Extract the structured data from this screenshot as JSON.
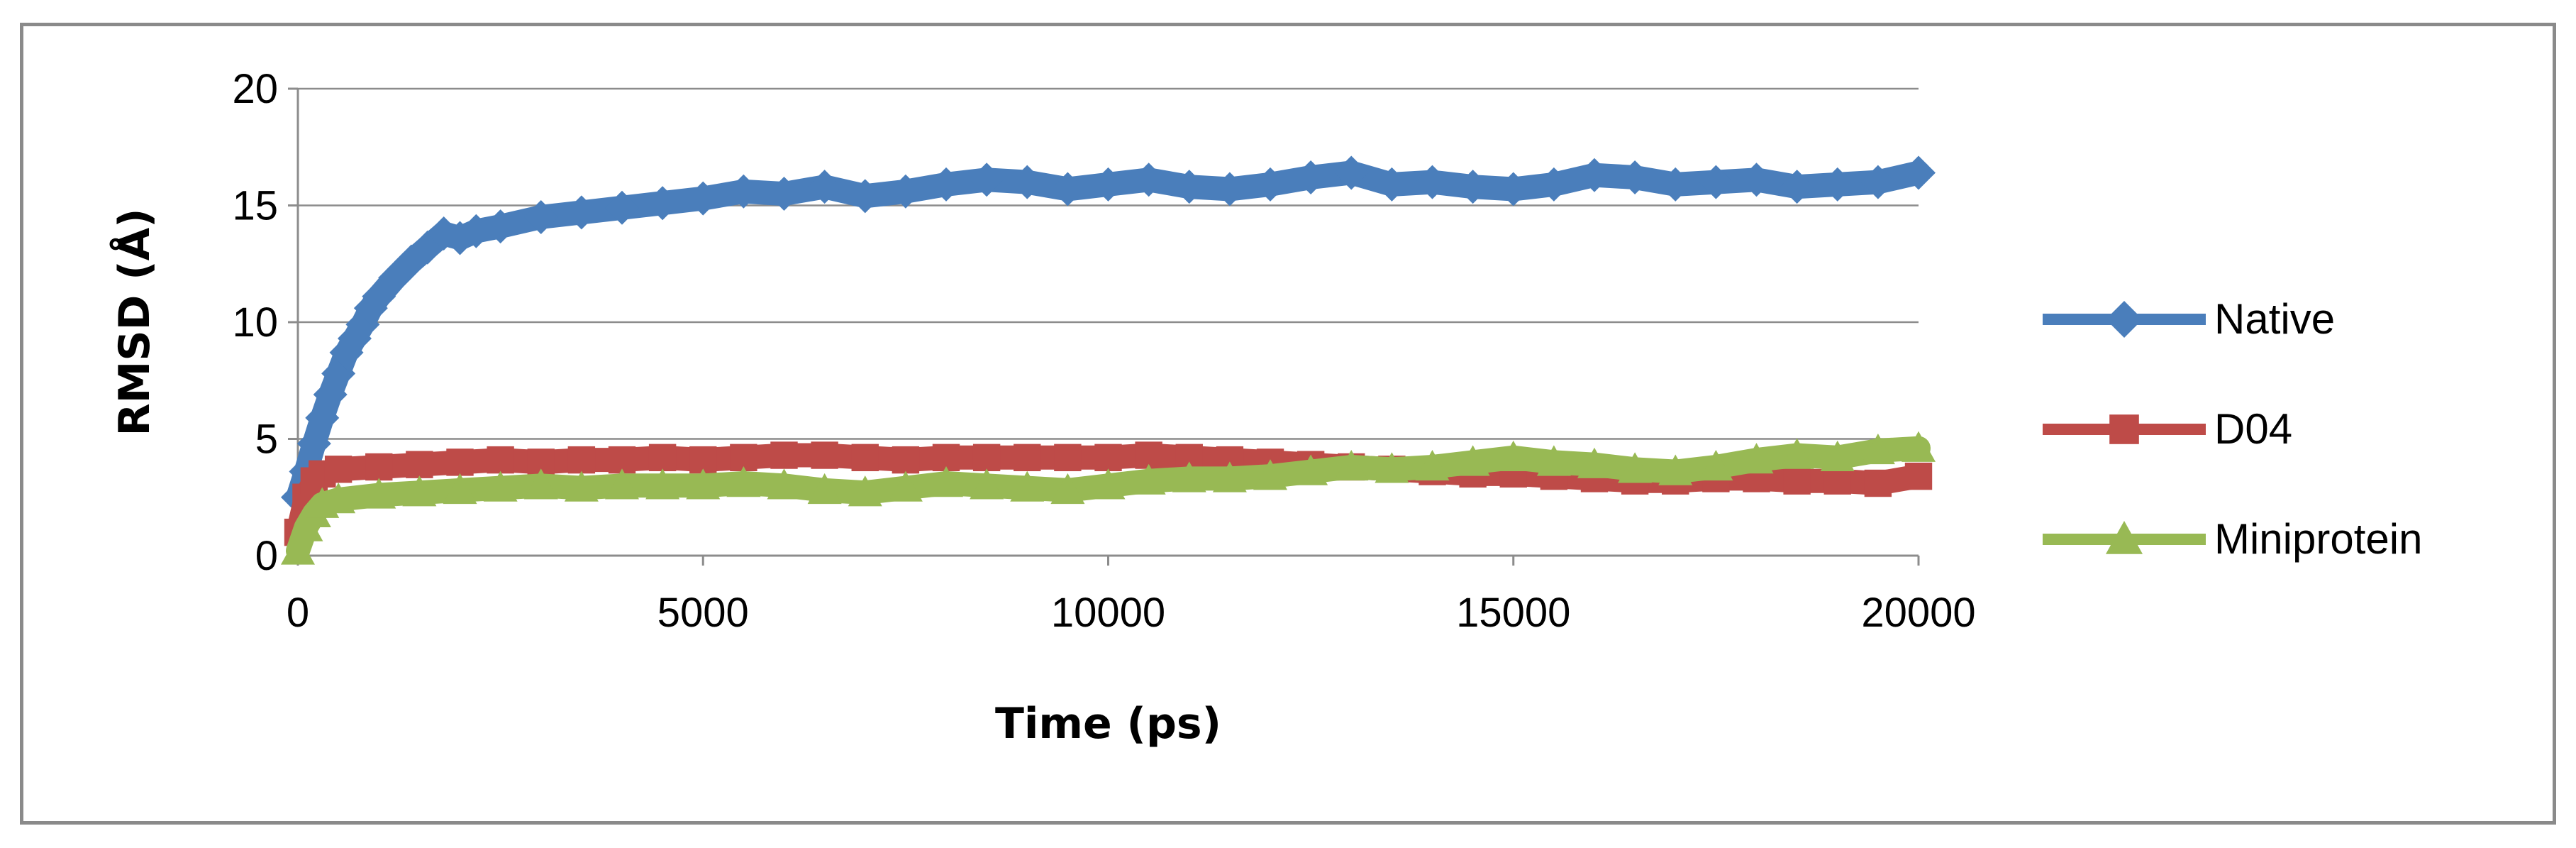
{
  "chart_data": {
    "type": "line",
    "xlabel": "Time (ps)",
    "ylabel": "RMSD (Å)",
    "xlim": [
      0,
      20000
    ],
    "ylim": [
      0,
      20
    ],
    "xticks": [
      "0",
      "5000",
      "10000",
      "15000",
      "20000"
    ],
    "yticks": [
      "0",
      "5",
      "10",
      "15",
      "20"
    ],
    "grid": "horizontal",
    "legend_position": "right",
    "series": [
      {
        "name": "Native",
        "color": "#4a7ebb",
        "marker": "diamond",
        "points": [
          [
            0,
            2.5
          ],
          [
            100,
            3.6
          ],
          [
            200,
            4.8
          ],
          [
            300,
            5.9
          ],
          [
            400,
            6.9
          ],
          [
            500,
            7.8
          ],
          [
            600,
            8.7
          ],
          [
            700,
            9.3
          ],
          [
            800,
            9.9
          ],
          [
            900,
            10.6
          ],
          [
            1000,
            11.1
          ],
          [
            1200,
            11.9
          ],
          [
            1400,
            12.6
          ],
          [
            1600,
            13.2
          ],
          [
            1800,
            13.8
          ],
          [
            2000,
            13.6
          ],
          [
            2200,
            13.9
          ],
          [
            2500,
            14.1
          ],
          [
            3000,
            14.5
          ],
          [
            3500,
            14.7
          ],
          [
            4000,
            14.9
          ],
          [
            4500,
            15.1
          ],
          [
            5000,
            15.3
          ],
          [
            5500,
            15.6
          ],
          [
            6000,
            15.5
          ],
          [
            6500,
            15.8
          ],
          [
            7000,
            15.4
          ],
          [
            7500,
            15.6
          ],
          [
            8000,
            15.9
          ],
          [
            8500,
            16.1
          ],
          [
            9000,
            16.0
          ],
          [
            9500,
            15.7
          ],
          [
            10000,
            15.9
          ],
          [
            10500,
            16.1
          ],
          [
            11000,
            15.8
          ],
          [
            11500,
            15.7
          ],
          [
            12000,
            15.9
          ],
          [
            12500,
            16.2
          ],
          [
            13000,
            16.4
          ],
          [
            13500,
            15.9
          ],
          [
            14000,
            16.0
          ],
          [
            14500,
            15.8
          ],
          [
            15000,
            15.7
          ],
          [
            15500,
            15.9
          ],
          [
            16000,
            16.3
          ],
          [
            16500,
            16.2
          ],
          [
            17000,
            15.9
          ],
          [
            17500,
            16.0
          ],
          [
            18000,
            16.1
          ],
          [
            18500,
            15.8
          ],
          [
            19000,
            15.9
          ],
          [
            19500,
            16.0
          ],
          [
            20000,
            16.4
          ]
        ]
      },
      {
        "name": "D04",
        "color": "#be4b48",
        "marker": "square",
        "points": [
          [
            0,
            1.0
          ],
          [
            100,
            2.5
          ],
          [
            200,
            3.2
          ],
          [
            300,
            3.5
          ],
          [
            500,
            3.7
          ],
          [
            1000,
            3.8
          ],
          [
            1500,
            3.9
          ],
          [
            2000,
            4.0
          ],
          [
            2500,
            4.1
          ],
          [
            3000,
            4.0
          ],
          [
            3500,
            4.1
          ],
          [
            4000,
            4.1
          ],
          [
            4500,
            4.2
          ],
          [
            5000,
            4.1
          ],
          [
            5500,
            4.2
          ],
          [
            6000,
            4.3
          ],
          [
            6500,
            4.3
          ],
          [
            7000,
            4.2
          ],
          [
            7500,
            4.1
          ],
          [
            8000,
            4.2
          ],
          [
            8500,
            4.2
          ],
          [
            9000,
            4.2
          ],
          [
            9500,
            4.2
          ],
          [
            10000,
            4.2
          ],
          [
            10500,
            4.3
          ],
          [
            11000,
            4.2
          ],
          [
            11500,
            4.1
          ],
          [
            12000,
            4.0
          ],
          [
            12500,
            3.9
          ],
          [
            13000,
            3.8
          ],
          [
            13500,
            3.7
          ],
          [
            14000,
            3.6
          ],
          [
            14500,
            3.5
          ],
          [
            15000,
            3.5
          ],
          [
            15500,
            3.4
          ],
          [
            16000,
            3.3
          ],
          [
            16500,
            3.2
          ],
          [
            17000,
            3.2
          ],
          [
            17500,
            3.3
          ],
          [
            18000,
            3.3
          ],
          [
            18500,
            3.2
          ],
          [
            19000,
            3.2
          ],
          [
            19500,
            3.1
          ],
          [
            20000,
            3.4
          ]
        ]
      },
      {
        "name": "Miniprotein",
        "color": "#98b954",
        "marker": "triangle",
        "points": [
          [
            0,
            0.2
          ],
          [
            100,
            1.2
          ],
          [
            200,
            1.8
          ],
          [
            300,
            2.2
          ],
          [
            500,
            2.4
          ],
          [
            1000,
            2.6
          ],
          [
            1500,
            2.7
          ],
          [
            2000,
            2.8
          ],
          [
            2500,
            2.9
          ],
          [
            3000,
            3.0
          ],
          [
            3500,
            2.9
          ],
          [
            4000,
            3.0
          ],
          [
            4500,
            3.0
          ],
          [
            5000,
            3.0
          ],
          [
            5500,
            3.1
          ],
          [
            6000,
            3.0
          ],
          [
            6500,
            2.8
          ],
          [
            7000,
            2.7
          ],
          [
            7500,
            2.9
          ],
          [
            8000,
            3.1
          ],
          [
            8500,
            3.0
          ],
          [
            9000,
            2.9
          ],
          [
            9500,
            2.8
          ],
          [
            10000,
            3.0
          ],
          [
            10500,
            3.2
          ],
          [
            11000,
            3.3
          ],
          [
            11500,
            3.3
          ],
          [
            12000,
            3.4
          ],
          [
            12500,
            3.6
          ],
          [
            13000,
            3.8
          ],
          [
            13500,
            3.7
          ],
          [
            14000,
            3.8
          ],
          [
            14500,
            4.0
          ],
          [
            15000,
            4.2
          ],
          [
            15500,
            4.0
          ],
          [
            16000,
            3.9
          ],
          [
            16500,
            3.7
          ],
          [
            17000,
            3.6
          ],
          [
            17500,
            3.8
          ],
          [
            18000,
            4.1
          ],
          [
            18500,
            4.3
          ],
          [
            19000,
            4.2
          ],
          [
            19500,
            4.5
          ],
          [
            20000,
            4.6
          ]
        ]
      }
    ]
  }
}
